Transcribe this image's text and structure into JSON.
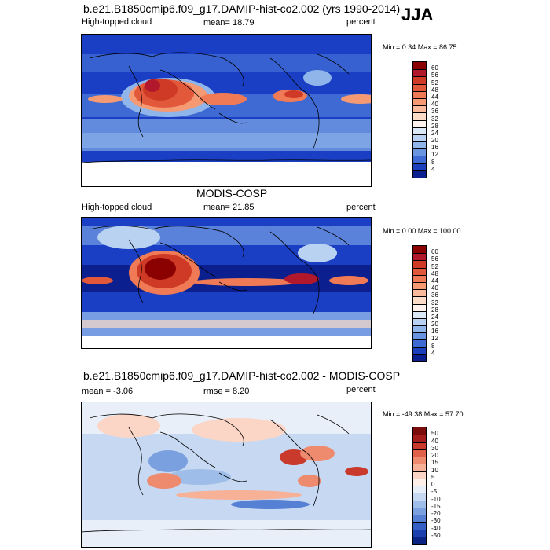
{
  "season": "JJA",
  "panels": [
    {
      "title": "b.e21.B1850cmip6.f09_g17.DAMIP-hist-co2.002 (yrs 1990-2014)",
      "left_label": "High-topped cloud",
      "center_label": "mean=  18.79",
      "right_label": "percent",
      "minmax": "Min =   0.34 Max =  86.75",
      "colorbar": {
        "labels": [
          "60",
          "56",
          "52",
          "48",
          "44",
          "40",
          "36",
          "32",
          "28",
          "24",
          "20",
          "16",
          "12",
          "8",
          "4"
        ],
        "colors": [
          "#8b0000",
          "#b2182b",
          "#cf3a26",
          "#e2583a",
          "#ef7a55",
          "#f59a73",
          "#f9bb9b",
          "#fbdcc8",
          "#fdf2ec",
          "#dbe8f7",
          "#b9d2f1",
          "#90b5ea",
          "#6a93e0",
          "#3f6ad4",
          "#1c3fbd",
          "#0b1f8f"
        ]
      }
    },
    {
      "title": "MODIS-COSP",
      "left_label": "High-topped cloud",
      "center_label": "mean=  21.85",
      "right_label": "percent",
      "minmax": "Min =   0.00 Max = 100.00",
      "colorbar": {
        "labels": [
          "60",
          "56",
          "52",
          "48",
          "44",
          "40",
          "36",
          "32",
          "28",
          "24",
          "20",
          "16",
          "12",
          "8",
          "4"
        ],
        "colors": [
          "#8b0000",
          "#b2182b",
          "#cf3a26",
          "#e2583a",
          "#ef7a55",
          "#f59a73",
          "#f9bb9b",
          "#fbdcc8",
          "#fdf2ec",
          "#dbe8f7",
          "#b9d2f1",
          "#90b5ea",
          "#6a93e0",
          "#3f6ad4",
          "#1c3fbd",
          "#0b1f8f"
        ]
      }
    },
    {
      "title": "b.e21.B1850cmip6.f09_g17.DAMIP-hist-co2.002 - MODIS-COSP",
      "left_label": "mean =  -3.06",
      "center_label": "rmse =   8.20",
      "right_label": "percent",
      "minmax": "Min = -49.38 Max =  57.70",
      "colorbar": {
        "labels": [
          "50",
          "40",
          "30",
          "20",
          "15",
          "10",
          "5",
          "0",
          "-5",
          "-10",
          "-15",
          "-20",
          "-30",
          "-40",
          "-50"
        ],
        "colors": [
          "#7a0c0c",
          "#a51c1c",
          "#c93a2d",
          "#e0604a",
          "#ee8a6e",
          "#f6b197",
          "#fbd5c5",
          "#fdf0ea",
          "#e8eff9",
          "#c6d8f2",
          "#9fbde9",
          "#7aa0df",
          "#5680d4",
          "#3760c6",
          "#1c40ad",
          "#0b2383"
        ]
      }
    }
  ]
}
